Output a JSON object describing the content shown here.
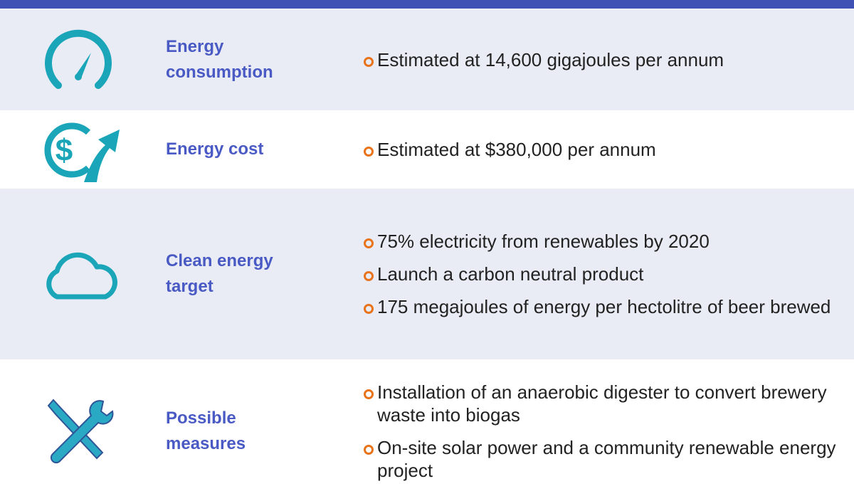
{
  "rows": [
    {
      "label": "Energy consumption",
      "items": [
        "Estimated at 14,600 gigajoules per annum"
      ]
    },
    {
      "label": "Energy cost",
      "items": [
        "Estimated at $380,000 per annum"
      ]
    },
    {
      "label": "Clean energy target",
      "items": [
        "75% electricity from renewables by 2020",
        "Launch a carbon neutral product",
        "175 megajoules of energy per hectolitre of beer brewed"
      ]
    },
    {
      "label": "Possible measures",
      "items": [
        "Installation of an anaerobic digester to convert brewery waste into biogas",
        "On-site solar power and a community renewable energy project"
      ]
    }
  ]
}
